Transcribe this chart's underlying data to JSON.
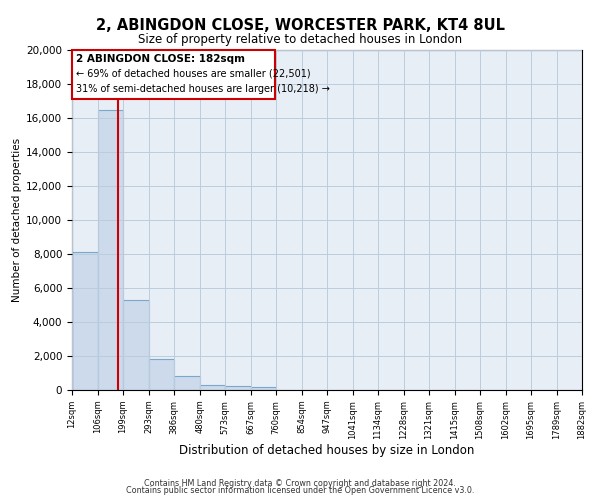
{
  "title": "2, ABINGDON CLOSE, WORCESTER PARK, KT4 8UL",
  "subtitle": "Size of property relative to detached houses in London",
  "xlabel": "Distribution of detached houses by size in London",
  "ylabel": "Number of detached properties",
  "bar_color": "#ccdaeb",
  "bar_edge_color": "#7aa8cc",
  "grid_color": "#bbccdd",
  "bg_color": "#e8eef5",
  "property_line_color": "#cc0000",
  "property_value": 182,
  "property_label": "2 ABINGDON CLOSE: 182sqm",
  "annotation_line1": "← 69% of detached houses are smaller (22,501)",
  "annotation_line2": "31% of semi-detached houses are larger (10,218) →",
  "bin_edges": [
    12,
    106,
    199,
    293,
    386,
    480,
    573,
    667,
    760,
    854,
    947,
    1041,
    1134,
    1228,
    1321,
    1415,
    1508,
    1602,
    1695,
    1789,
    1882
  ],
  "bin_labels": [
    "12sqm",
    "106sqm",
    "199sqm",
    "293sqm",
    "386sqm",
    "480sqm",
    "573sqm",
    "667sqm",
    "760sqm",
    "854sqm",
    "947sqm",
    "1041sqm",
    "1134sqm",
    "1228sqm",
    "1321sqm",
    "1415sqm",
    "1508sqm",
    "1602sqm",
    "1695sqm",
    "1789sqm",
    "1882sqm"
  ],
  "counts": [
    8100,
    16500,
    5300,
    1800,
    800,
    300,
    250,
    200,
    0,
    0,
    0,
    0,
    0,
    0,
    0,
    0,
    0,
    0,
    0,
    0
  ],
  "ylim": [
    0,
    20000
  ],
  "yticks": [
    0,
    2000,
    4000,
    6000,
    8000,
    10000,
    12000,
    14000,
    16000,
    18000,
    20000
  ],
  "footnote1": "Contains HM Land Registry data © Crown copyright and database right 2024.",
  "footnote2": "Contains public sector information licensed under the Open Government Licence v3.0."
}
